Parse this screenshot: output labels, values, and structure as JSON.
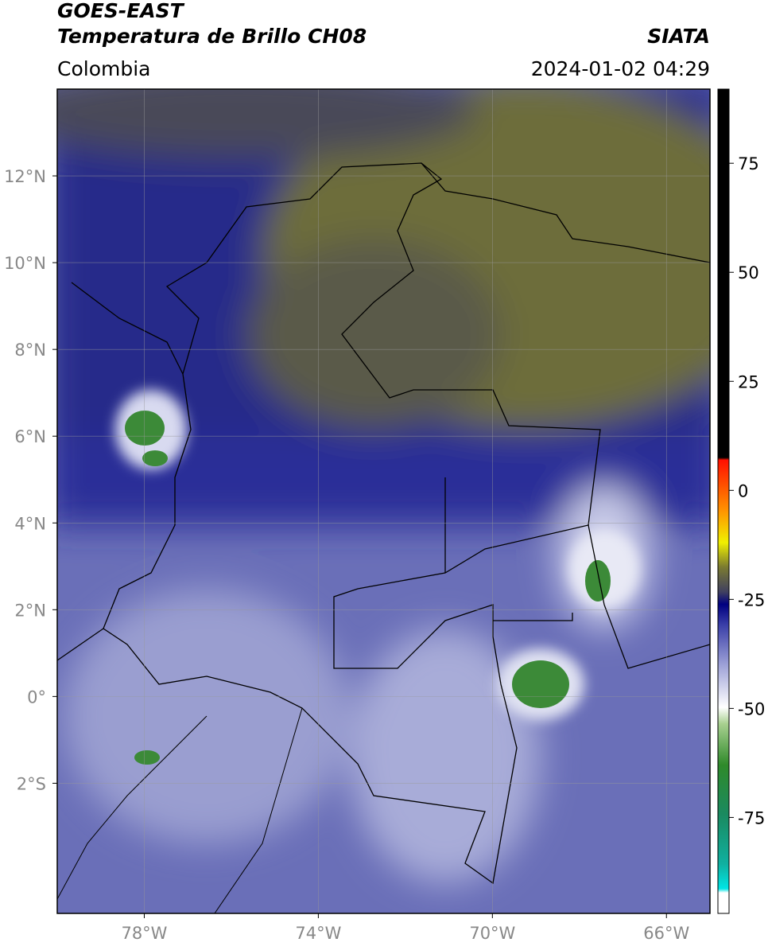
{
  "header": {
    "title": "GOES-EAST",
    "subtitle": "Temperatura de Brillo CH08",
    "source": "SIATA",
    "region": "Colombia",
    "timestamp": "2024-01-02 04:29"
  },
  "map": {
    "xlim": [
      -80,
      -65
    ],
    "ylim": [
      -5,
      14
    ],
    "xticks": [
      {
        "value": -78,
        "label": "78°W"
      },
      {
        "value": -74,
        "label": "74°W"
      },
      {
        "value": -70,
        "label": "70°W"
      },
      {
        "value": -66,
        "label": "66°W"
      }
    ],
    "yticks": [
      {
        "value": 12,
        "label": "12°N"
      },
      {
        "value": 10,
        "label": "10°N"
      },
      {
        "value": 8,
        "label": "8°N"
      },
      {
        "value": 6,
        "label": "6°N"
      },
      {
        "value": 4,
        "label": "4°N"
      },
      {
        "value": 2,
        "label": "2°N"
      },
      {
        "value": 0,
        "label": "0°"
      },
      {
        "value": -2,
        "label": "2°S"
      }
    ],
    "grid": true
  },
  "colorbar": {
    "lim": [
      -97,
      92
    ],
    "ticks": [
      75,
      50,
      25,
      0,
      -25,
      -50,
      -75
    ]
  }
}
